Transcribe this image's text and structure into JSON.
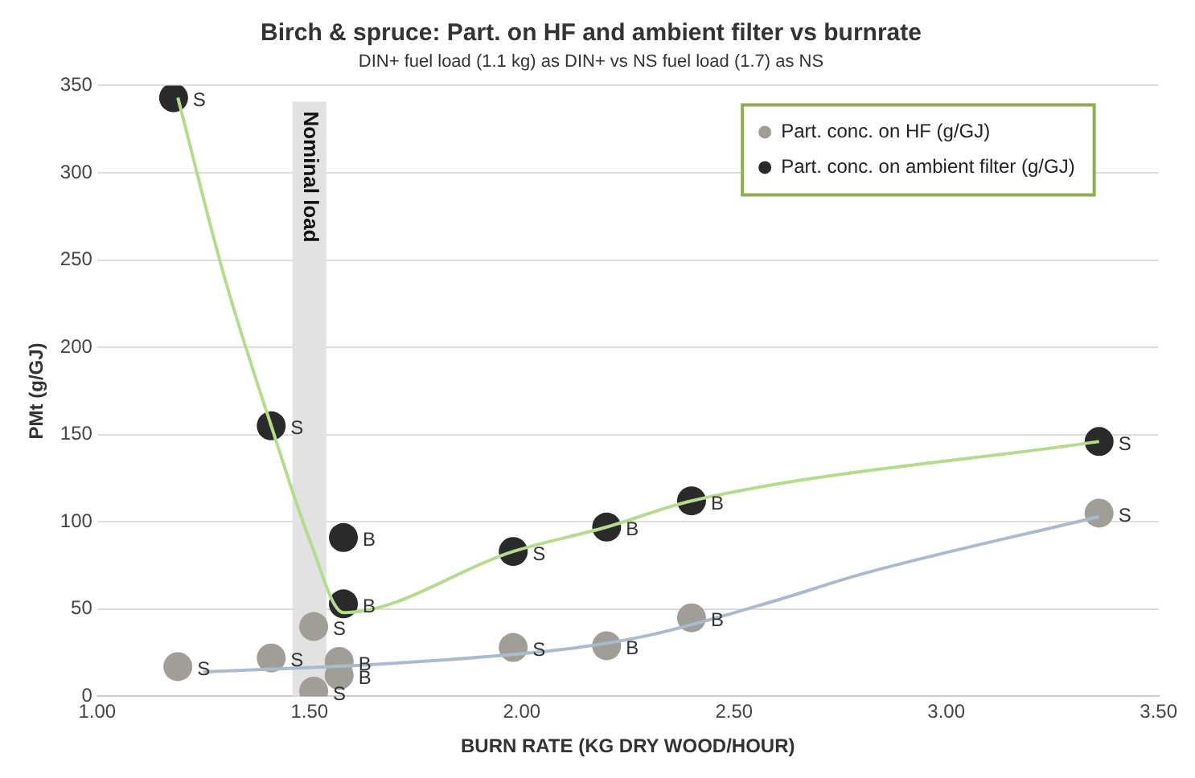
{
  "chart_data": {
    "type": "scatter",
    "title": "Birch & spruce: Part. on HF and ambient filter vs burnrate",
    "subtitle": "DIN+ fuel load (1.1 kg) as DIN+ vs NS fuel load (1.7) as NS",
    "xlabel": "BURN RATE (KG DRY WOOD/HOUR)",
    "ylabel": "PMt (g/GJ)",
    "xlim": [
      1,
      3.5
    ],
    "xticks": [
      {
        "value": 1,
        "label": "1.00"
      },
      {
        "value": 1.5,
        "label": "1.50"
      },
      {
        "value": 2,
        "label": "2.00"
      },
      {
        "value": 2.5,
        "label": "2.50"
      },
      {
        "value": 3,
        "label": "3.00"
      },
      {
        "value": 3.5,
        "label": "3.50"
      }
    ],
    "ylim": [
      0,
      350
    ],
    "yticks": [
      0,
      50,
      100,
      150,
      200,
      250,
      300,
      350
    ],
    "grid": "y",
    "legend": "top right",
    "marker": "circle",
    "series": [
      {
        "name": "Part. conc. on HF (g/GJ)",
        "color": "#a09e96",
        "x": [
          1.19,
          1.41,
          1.51,
          1.51,
          1.57,
          1.57,
          1.98,
          2.2,
          2.4,
          3.36
        ],
        "values": [
          17,
          22,
          40,
          3,
          20,
          12,
          28,
          29,
          45,
          105
        ]
      },
      {
        "name": "Part. conc. on ambient filter (g/GJ)",
        "color": "#2a2a2a",
        "x": [
          1.18,
          1.41,
          1.58,
          1.58,
          1.98,
          2.2,
          2.4,
          3.36
        ],
        "values": [
          343,
          155,
          91,
          53,
          83,
          97,
          112,
          146
        ]
      },
      {
        "type": "line",
        "color": "#a9bccf",
        "marker": "none",
        "x": [
          1.25,
          1.7,
          2.1,
          2.3,
          2.6,
          2.8,
          3.36
        ],
        "values": [
          14,
          19,
          27,
          35,
          55,
          70,
          103
        ]
      },
      {
        "type": "line",
        "color": "#b5dc8c",
        "marker": "none",
        "x": [
          1.19,
          1.3,
          1.41,
          1.5,
          1.58,
          1.98,
          2.2,
          2.4,
          3.36
        ],
        "values": [
          343,
          240,
          155,
          90,
          48,
          83,
          97,
          112,
          146
        ]
      }
    ],
    "bands": [
      {
        "axis": "x",
        "from": 1.46,
        "to": 1.54,
        "label": "Nominal load",
        "color": "#e2e2e2"
      }
    ],
    "annotations": [
      {
        "text": "S",
        "x": 1.19,
        "y": 17
      },
      {
        "text": "S",
        "x": 1.41,
        "y": 22
      },
      {
        "text": "S",
        "x": 1.51,
        "y": 40
      },
      {
        "text": "S",
        "x": 1.51,
        "y": 3
      },
      {
        "text": "B",
        "x": 1.57,
        "y": 20
      },
      {
        "text": "B",
        "x": 1.57,
        "y": 12
      },
      {
        "text": "S",
        "x": 1.98,
        "y": 28
      },
      {
        "text": "B",
        "x": 2.2,
        "y": 29
      },
      {
        "text": "B",
        "x": 2.4,
        "y": 45
      },
      {
        "text": "S",
        "x": 3.36,
        "y": 105
      },
      {
        "text": "S",
        "x": 1.18,
        "y": 343
      },
      {
        "text": "S",
        "x": 1.41,
        "y": 155
      },
      {
        "text": "B",
        "x": 1.58,
        "y": 91
      },
      {
        "text": "B",
        "x": 1.58,
        "y": 53
      },
      {
        "text": "S",
        "x": 1.98,
        "y": 83
      },
      {
        "text": "B",
        "x": 2.2,
        "y": 97
      },
      {
        "text": "B",
        "x": 2.4,
        "y": 112
      },
      {
        "text": "S",
        "x": 3.36,
        "y": 146
      }
    ]
  }
}
